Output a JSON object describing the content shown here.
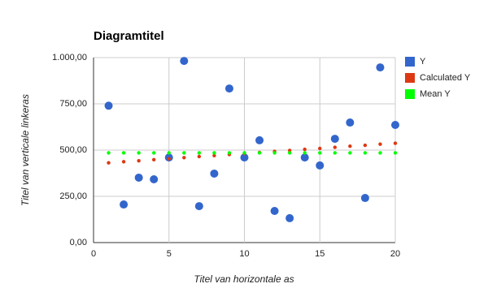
{
  "chart_data": {
    "type": "scatter",
    "title": "Diagramtitel",
    "x_label": "Titel van horizontale as",
    "y_label": "Titel van verticale linkeras",
    "x": [
      1,
      2,
      3,
      4,
      5,
      6,
      7,
      8,
      9,
      10,
      11,
      12,
      13,
      14,
      15,
      16,
      17,
      18,
      19,
      20
    ],
    "series": [
      {
        "name": "Y",
        "color": "#3366cc",
        "values": [
          740,
          206,
          351,
          342,
          460,
          982,
          197,
          373,
          833,
          460,
          553,
          171,
          132,
          460,
          417,
          561,
          649,
          241,
          947,
          636
        ]
      },
      {
        "name": "Calculated Y",
        "color": "#dc3912",
        "values": [
          431,
          437,
          442,
          448,
          453,
          459,
          465,
          470,
          476,
          481,
          487,
          493,
          498,
          504,
          509,
          515,
          521,
          526,
          532,
          537
        ]
      },
      {
        "name": "Mean Y",
        "color": "#00ff00",
        "values": [
          485,
          485,
          485,
          485,
          485,
          485,
          485,
          485,
          485,
          485,
          485,
          485,
          485,
          485,
          485,
          485,
          485,
          485,
          485,
          485
        ]
      }
    ],
    "xlim": [
      0,
      20
    ],
    "xticks": [
      0,
      5,
      10,
      15,
      20
    ],
    "ylim": [
      0,
      1000
    ],
    "yticks": [
      {
        "value": 0,
        "label": "0,00"
      },
      {
        "value": 250,
        "label": "250,00"
      },
      {
        "value": 500,
        "label": "500,00"
      },
      {
        "value": 750,
        "label": "750,00"
      },
      {
        "value": 1000,
        "label": "1.000,00"
      }
    ],
    "grid": true,
    "legend": "right"
  }
}
